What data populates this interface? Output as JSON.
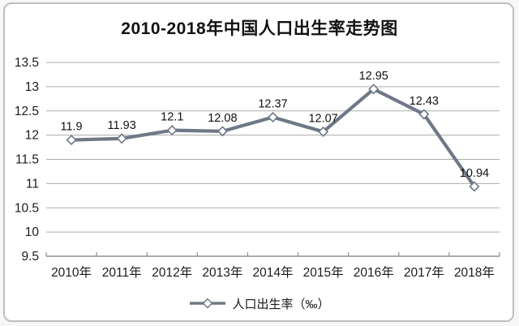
{
  "chart_data": {
    "type": "line",
    "title": "2010-2018年中国人口出生率走势图",
    "categories": [
      "2010年",
      "2011年",
      "2012年",
      "2013年",
      "2014年",
      "2015年",
      "2016年",
      "2017年",
      "2018年"
    ],
    "series": [
      {
        "name": "人口出生率（‰）",
        "values": [
          11.9,
          11.93,
          12.1,
          12.08,
          12.37,
          12.07,
          12.95,
          12.43,
          10.94
        ]
      }
    ],
    "data_labels": [
      "11.9",
      "11.93",
      "12.1",
      "12.08",
      "12.37",
      "12.07",
      "12.95",
      "12.43",
      "10.94"
    ],
    "xlabel": "",
    "ylabel": "",
    "ylim": [
      9.5,
      13.5
    ],
    "ytick_step": 0.5,
    "ytick_labels": [
      "9.5",
      "10",
      "10.5",
      "11",
      "11.5",
      "12",
      "12.5",
      "13",
      "13.5"
    ],
    "grid": true,
    "legend_position": "bottom",
    "marker": "diamond",
    "colors": {
      "line": "#6e7887",
      "marker_fill": "#ffffff",
      "grid": "#ababab",
      "axis": "#8f8f8f",
      "text": "#1c1c1c"
    }
  }
}
